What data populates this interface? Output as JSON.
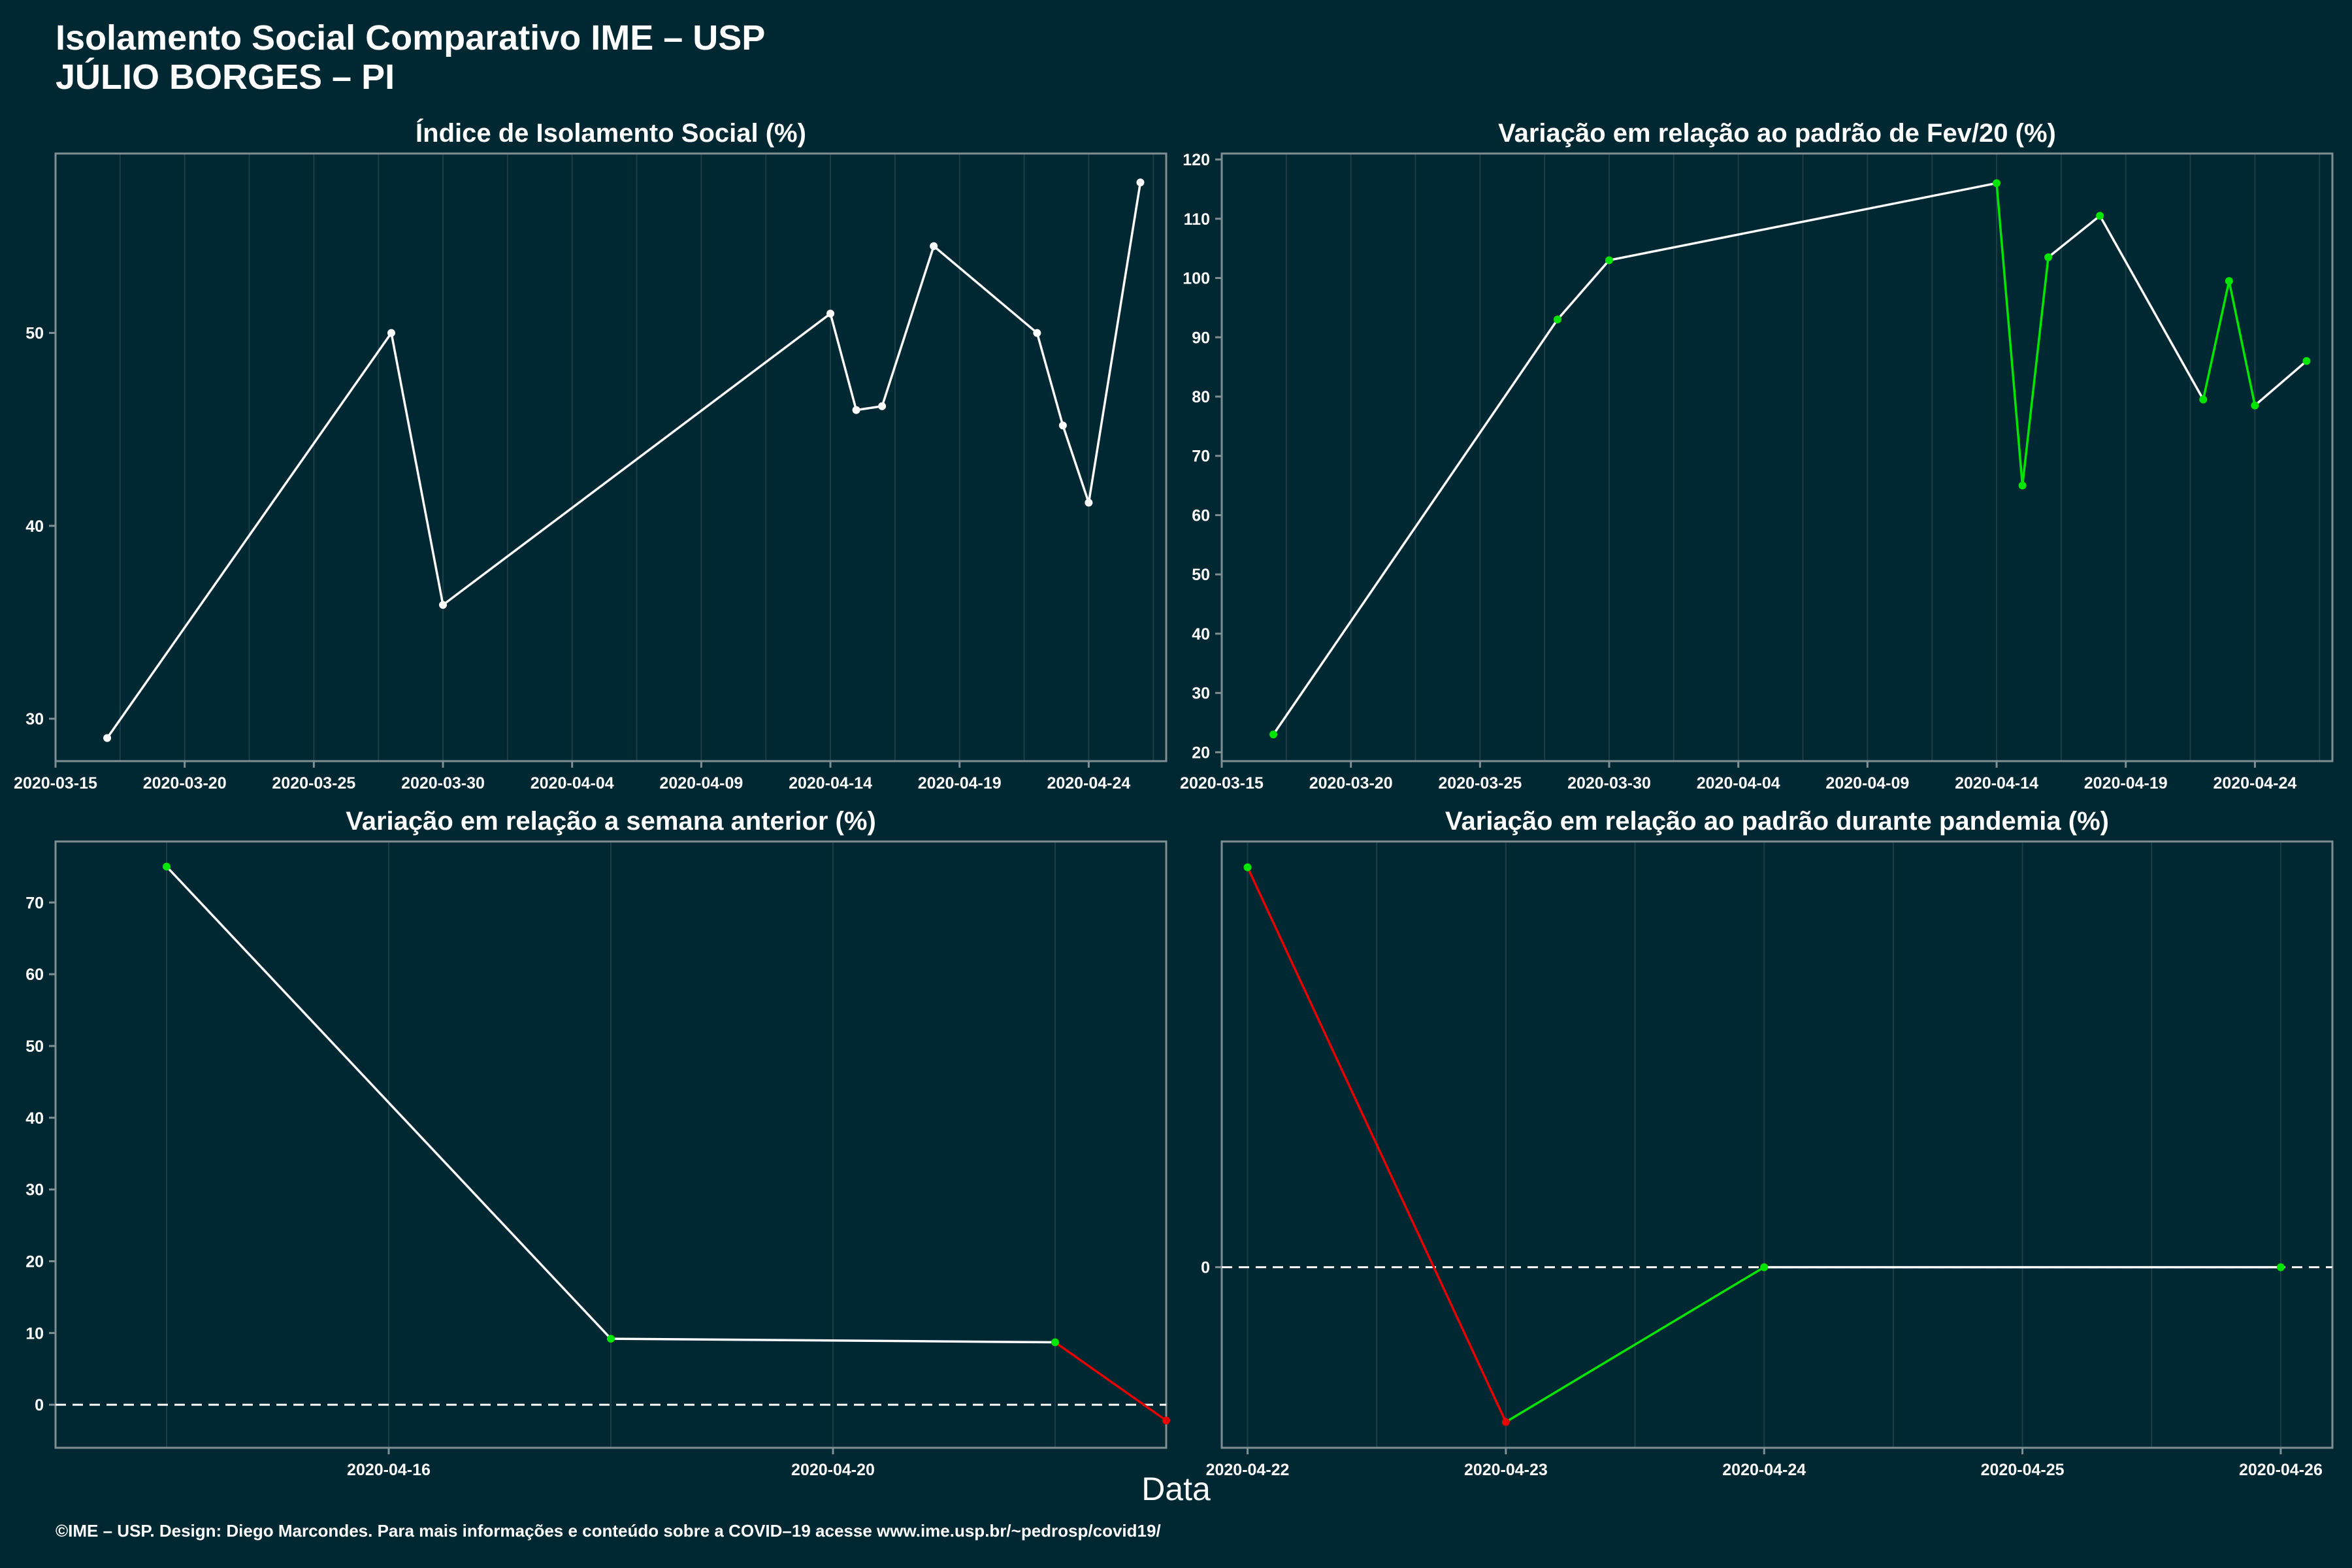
{
  "header": {
    "title_line1": "Isolamento Social Comparativo IME – USP",
    "title_line2": "JÚLIO BORGES – PI"
  },
  "x_axis_label": "Data",
  "caption": "©IME – USP. Design: Diego Marcondes. Para mais informações e conteúdo sobre a COVID–19 acesse www.ime.usp.br/~pedrosp/covid19/",
  "colors": {
    "background": "#002833",
    "panel_border": "#7f8f93",
    "grid": "#1d3d47",
    "line": "#ffffff",
    "increase": "#00e600",
    "decrease": "#e60000"
  },
  "chart_data": [
    {
      "type": "line",
      "title": "Índice de Isolamento Social (%)",
      "xlabel": "Data",
      "ylabel": "",
      "x_range": [
        "2020-03-15",
        "2020-04-27"
      ],
      "ylim": [
        27.8,
        59.3
      ],
      "x_ticks": [
        "2020-03-15",
        "2020-03-20",
        "2020-03-25",
        "2020-03-30",
        "2020-04-04",
        "2020-04-09",
        "2020-04-14",
        "2020-04-19",
        "2020-04-24"
      ],
      "y_ticks": [
        30,
        40,
        50
      ],
      "point_colors": false,
      "dates": [
        "2020-03-17",
        "2020-03-28",
        "2020-03-30",
        "2020-04-14",
        "2020-04-15",
        "2020-04-16",
        "2020-04-18",
        "2020-04-22",
        "2020-04-23",
        "2020-04-24",
        "2020-04-26"
      ],
      "values": [
        29.0,
        50.0,
        35.9,
        51.0,
        46.0,
        46.2,
        54.5,
        50.0,
        45.2,
        41.2,
        57.8
      ]
    },
    {
      "type": "line",
      "title": "Variação em relação ao padrão de Fev/20 (%)",
      "xlabel": "Data",
      "ylabel": "",
      "x_range": [
        "2020-03-15",
        "2020-04-27"
      ],
      "ylim": [
        18.5,
        121.0
      ],
      "x_ticks": [
        "2020-03-15",
        "2020-03-20",
        "2020-03-25",
        "2020-03-30",
        "2020-04-04",
        "2020-04-09",
        "2020-04-14",
        "2020-04-19",
        "2020-04-24"
      ],
      "y_ticks": [
        20,
        30,
        40,
        50,
        60,
        70,
        80,
        90,
        100,
        110,
        120
      ],
      "point_colors": true,
      "dates": [
        "2020-03-17",
        "2020-03-28",
        "2020-03-30",
        "2020-04-14",
        "2020-04-15",
        "2020-04-16",
        "2020-04-18",
        "2020-04-22",
        "2020-04-23",
        "2020-04-24",
        "2020-04-26"
      ],
      "values": [
        23.0,
        93.0,
        103.0,
        116.0,
        65.0,
        103.5,
        110.5,
        79.5,
        99.5,
        78.5,
        86.0
      ]
    },
    {
      "type": "line",
      "title": "Variação em relação a semana anterior (%)",
      "xlabel": "Data",
      "ylabel": "",
      "x_range": [
        "2020-04-13",
        "2020-04-23"
      ],
      "ylim": [
        -6.0,
        78.5
      ],
      "x_ticks": [
        "2020-04-16",
        "2020-04-20"
      ],
      "y_ticks": [
        0,
        10,
        20,
        30,
        40,
        50,
        60,
        70
      ],
      "point_colors": true,
      "zero_line": true,
      "dates": [
        "2020-04-14",
        "2020-04-18",
        "2020-04-22",
        "2020-04-23"
      ],
      "values": [
        75.0,
        9.2,
        8.7,
        -2.2
      ]
    },
    {
      "type": "line",
      "title": "Variação em relação ao padrão durante pandemia (%)",
      "xlabel": "Data",
      "ylabel": "",
      "x_range": [
        "2020-04-21.9",
        "2020-04-26.2"
      ],
      "ylim": [
        -14.0,
        33.0
      ],
      "x_ticks": [
        "2020-04-22",
        "2020-04-23",
        "2020-04-24",
        "2020-04-25",
        "2020-04-26"
      ],
      "y_ticks": [
        0
      ],
      "point_colors": true,
      "zero_line": true,
      "dates": [
        "2020-04-22",
        "2020-04-23",
        "2020-04-24",
        "2020-04-26"
      ],
      "values": [
        31.0,
        -12.0,
        0.0,
        0.0
      ]
    }
  ]
}
